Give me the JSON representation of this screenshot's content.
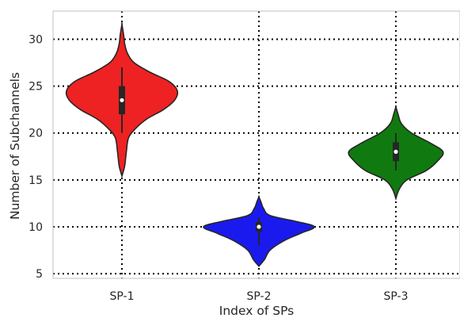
{
  "chart_data": {
    "type": "violin",
    "xlabel": "Index of SPs",
    "ylabel": "Number of Subchannels",
    "ylim": [
      4.5,
      33
    ],
    "yticks": [
      5,
      10,
      15,
      20,
      25,
      30
    ],
    "grid": true,
    "categories": [
      "SP-1",
      "SP-2",
      "SP-3"
    ],
    "series": [
      {
        "category": "SP-1",
        "color": "#ee2222",
        "min": 15.4,
        "max": 31.6,
        "q1": 22,
        "median": 23.5,
        "q3": 25,
        "whisker_low": 20,
        "whisker_high": 27,
        "profile": [
          [
            15.4,
            0.0
          ],
          [
            16.5,
            0.05
          ],
          [
            18,
            0.08
          ],
          [
            19.5,
            0.12
          ],
          [
            20.5,
            0.25
          ],
          [
            21.5,
            0.45
          ],
          [
            22.5,
            0.75
          ],
          [
            23.5,
            0.95
          ],
          [
            24.5,
            1.0
          ],
          [
            25.5,
            0.85
          ],
          [
            26.5,
            0.5
          ],
          [
            27.5,
            0.22
          ],
          [
            28.5,
            0.1
          ],
          [
            29.5,
            0.05
          ],
          [
            30.5,
            0.03
          ],
          [
            31.6,
            0.0
          ]
        ]
      },
      {
        "category": "SP-2",
        "color": "#1a1aee",
        "min": 5.8,
        "max": 13.2,
        "q1": 9.5,
        "median": 10,
        "q3": 10.5,
        "whisker_low": 8,
        "whisker_high": 11,
        "profile": [
          [
            5.8,
            0.0
          ],
          [
            6.5,
            0.1
          ],
          [
            7.5,
            0.2
          ],
          [
            8.5,
            0.45
          ],
          [
            9.3,
            0.75
          ],
          [
            10,
            1.0
          ],
          [
            10.6,
            0.65
          ],
          [
            11.2,
            0.2
          ],
          [
            12,
            0.08
          ],
          [
            12.6,
            0.04
          ],
          [
            13.2,
            0.0
          ]
        ]
      },
      {
        "category": "SP-3",
        "color": "#107a10",
        "min": 13,
        "max": 22.8,
        "q1": 17,
        "median": 18,
        "q3": 19,
        "whisker_low": 16,
        "whisker_high": 20,
        "profile": [
          [
            13,
            0.0
          ],
          [
            14,
            0.06
          ],
          [
            15,
            0.2
          ],
          [
            16,
            0.55
          ],
          [
            17,
            0.75
          ],
          [
            18,
            0.85
          ],
          [
            19,
            0.6
          ],
          [
            20,
            0.28
          ],
          [
            21,
            0.1
          ],
          [
            22,
            0.04
          ],
          [
            22.8,
            0.0
          ]
        ]
      }
    ]
  }
}
